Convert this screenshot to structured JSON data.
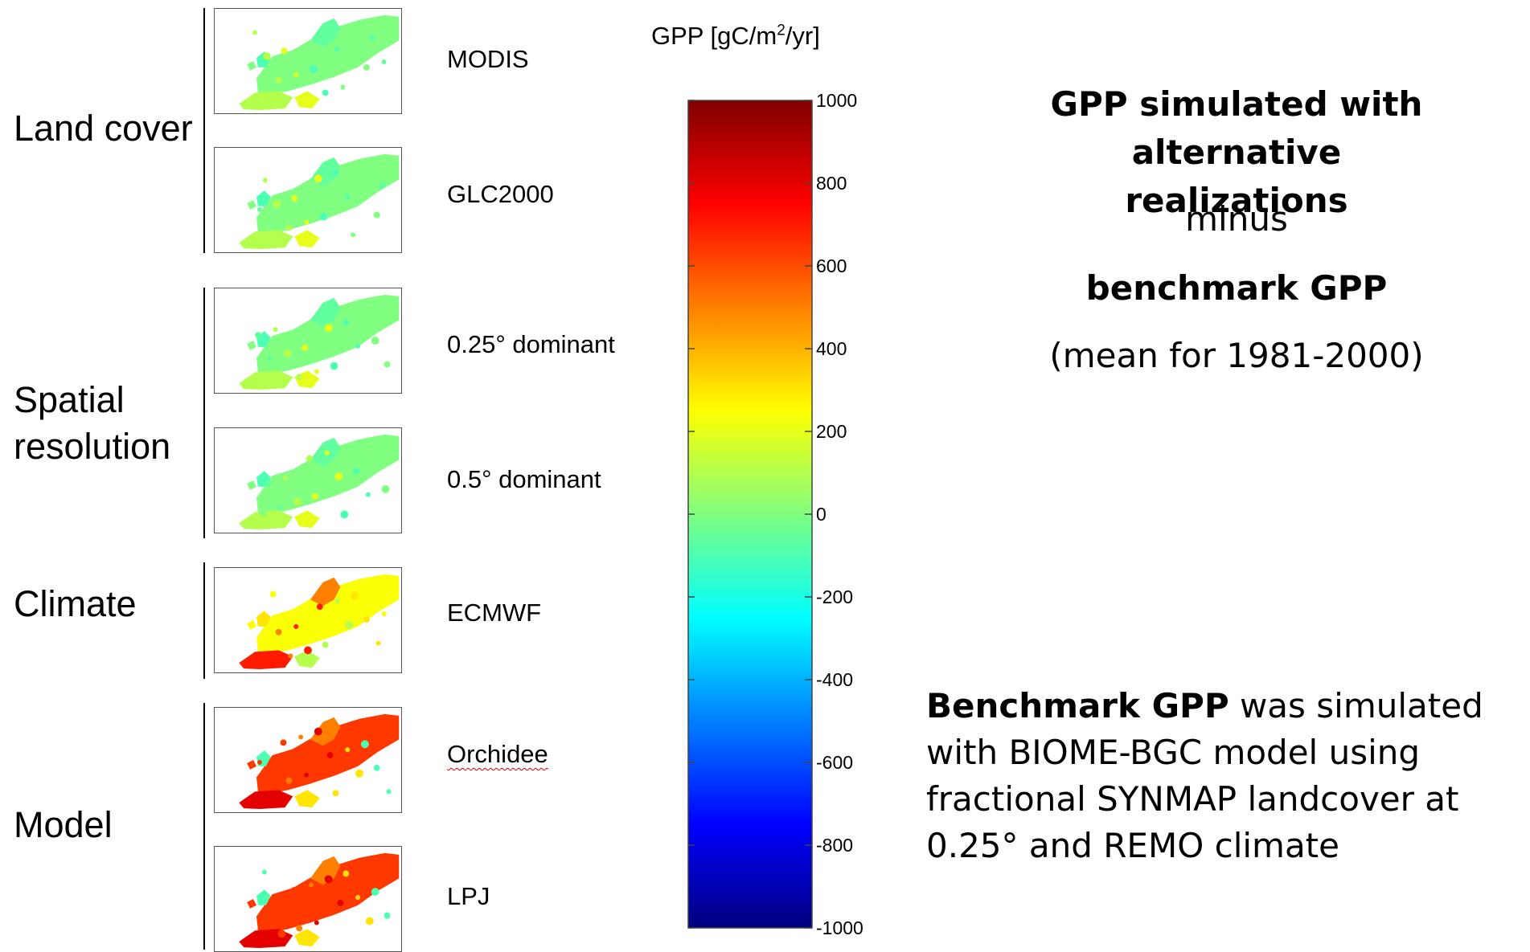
{
  "groups": [
    {
      "label": "Land cover"
    },
    {
      "label_line1": "Spatial",
      "label_line2": "resolution"
    },
    {
      "label": "Climate"
    },
    {
      "label": "Model"
    }
  ],
  "maps": [
    {
      "label": "MODIS",
      "positive_anomaly": "low"
    },
    {
      "label": "GLC2000",
      "positive_anomaly": "low"
    },
    {
      "label": "0.25° dominant",
      "positive_anomaly": "low"
    },
    {
      "label": "0.5° dominant",
      "positive_anomaly": "low"
    },
    {
      "label": "ECMWF",
      "positive_anomaly": "medium"
    },
    {
      "label": "Orchidee",
      "positive_anomaly": "high"
    },
    {
      "label": "LPJ",
      "positive_anomaly": "high"
    }
  ],
  "colorbar": {
    "title_prefix": "GPP [gC/m",
    "title_sup": "2",
    "title_suffix": "/yr]",
    "range": [
      -1000,
      1000
    ],
    "colormap": "jet",
    "ticks": [
      "1000",
      "800",
      "600",
      "400",
      "200",
      "0",
      "-200",
      "-400",
      "-600",
      "-800",
      "-1000"
    ]
  },
  "description": {
    "line1": "GPP simulated with alternative",
    "line2": "realizations",
    "line3": "minus",
    "line4": "benchmark GPP",
    "line5": "(mean for 1981-2000)"
  },
  "note": {
    "bold_part": "Benchmark GPP",
    "rest": " was simulated with BIOME-BGC model using fractional SYNMAP landcover at 0.25° and REMO climate"
  }
}
